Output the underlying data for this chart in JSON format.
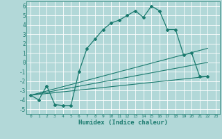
{
  "xlabel": "Humidex (Indice chaleur)",
  "background_color": "#b2d8d8",
  "grid_color": "#ffffff",
  "line_color": "#1a7a6e",
  "xlim": [
    -0.5,
    23.5
  ],
  "ylim": [
    -5.5,
    6.5
  ],
  "xticks": [
    0,
    1,
    2,
    3,
    4,
    5,
    6,
    7,
    8,
    9,
    10,
    11,
    12,
    13,
    14,
    15,
    16,
    17,
    18,
    19,
    20,
    21,
    22,
    23
  ],
  "yticks": [
    -5,
    -4,
    -3,
    -2,
    -1,
    0,
    1,
    2,
    3,
    4,
    5,
    6
  ],
  "curve1_x": [
    0,
    1,
    2,
    3,
    4,
    5,
    6,
    7,
    8,
    9,
    10,
    11,
    12,
    13,
    14,
    15,
    16,
    17,
    18,
    19,
    20,
    21,
    22
  ],
  "curve1_y": [
    -3.5,
    -4.0,
    -2.5,
    -4.5,
    -4.6,
    -4.6,
    -1.0,
    1.5,
    2.5,
    3.5,
    4.2,
    4.5,
    5.0,
    5.5,
    4.8,
    6.0,
    5.5,
    3.5,
    3.5,
    0.8,
    1.0,
    -1.5,
    -1.5
  ],
  "line1_x": [
    0,
    22
  ],
  "line1_y": [
    -3.5,
    1.5
  ],
  "line2_x": [
    0,
    22
  ],
  "line2_y": [
    -3.5,
    -1.5
  ],
  "line3_x": [
    0,
    22
  ],
  "line3_y": [
    -3.5,
    0.0
  ]
}
